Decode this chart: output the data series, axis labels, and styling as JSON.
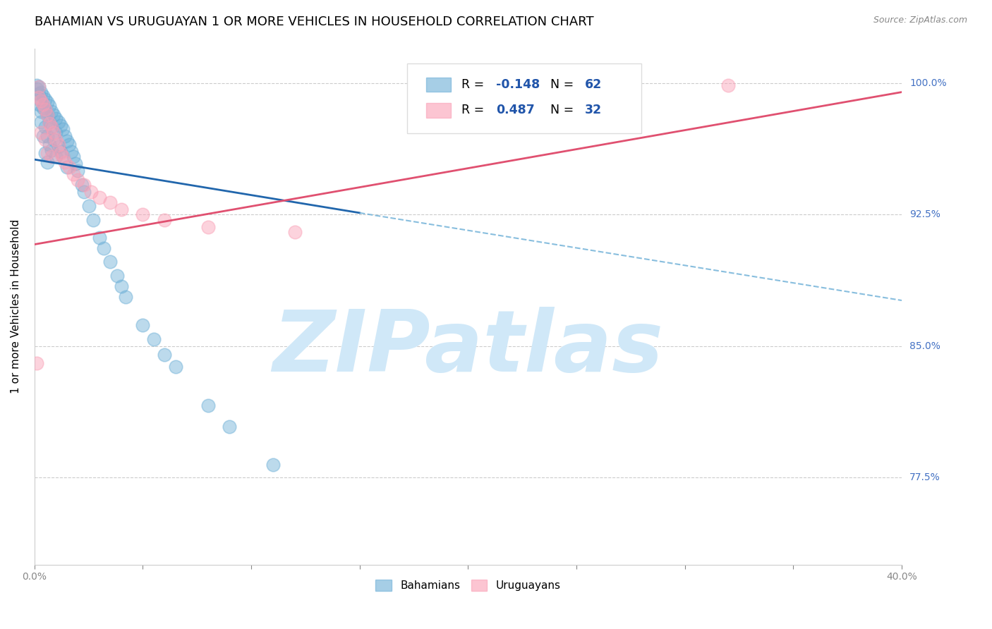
{
  "title": "BAHAMIAN VS URUGUAYAN 1 OR MORE VEHICLES IN HOUSEHOLD CORRELATION CHART",
  "source": "Source: ZipAtlas.com",
  "ylabel": "1 or more Vehicles in Household",
  "ytick_labels": [
    "77.5%",
    "85.0%",
    "92.5%",
    "100.0%"
  ],
  "ytick_values": [
    0.775,
    0.85,
    0.925,
    1.0
  ],
  "xlim": [
    0.0,
    0.4
  ],
  "ylim": [
    0.725,
    1.02
  ],
  "blue_color": "#6baed6",
  "pink_color": "#fa9fb5",
  "trend_blue_solid_color": "#2166ac",
  "trend_blue_dash_color": "#6baed6",
  "trend_pink_color": "#e05070",
  "watermark_text": "ZIPatlas",
  "watermark_color": "#d0e8f8",
  "title_fontsize": 13,
  "axis_label_fontsize": 11,
  "tick_fontsize": 10,
  "blue_scatter_x": [
    0.001,
    0.001,
    0.002,
    0.002,
    0.002,
    0.003,
    0.003,
    0.003,
    0.003,
    0.004,
    0.004,
    0.004,
    0.005,
    0.005,
    0.005,
    0.005,
    0.006,
    0.006,
    0.006,
    0.006,
    0.007,
    0.007,
    0.007,
    0.008,
    0.008,
    0.008,
    0.009,
    0.009,
    0.01,
    0.01,
    0.01,
    0.011,
    0.011,
    0.012,
    0.012,
    0.013,
    0.013,
    0.014,
    0.015,
    0.015,
    0.016,
    0.017,
    0.018,
    0.019,
    0.02,
    0.022,
    0.023,
    0.025,
    0.027,
    0.03,
    0.032,
    0.035,
    0.038,
    0.04,
    0.042,
    0.05,
    0.055,
    0.06,
    0.065,
    0.08,
    0.09,
    0.11
  ],
  "blue_scatter_y": [
    0.999,
    0.997,
    0.998,
    0.994,
    0.988,
    0.995,
    0.99,
    0.984,
    0.978,
    0.993,
    0.986,
    0.97,
    0.991,
    0.985,
    0.975,
    0.96,
    0.989,
    0.982,
    0.97,
    0.955,
    0.987,
    0.978,
    0.965,
    0.984,
    0.975,
    0.962,
    0.982,
    0.968,
    0.98,
    0.972,
    0.958,
    0.978,
    0.964,
    0.976,
    0.961,
    0.974,
    0.958,
    0.97,
    0.967,
    0.952,
    0.965,
    0.961,
    0.958,
    0.954,
    0.95,
    0.942,
    0.938,
    0.93,
    0.922,
    0.912,
    0.906,
    0.898,
    0.89,
    0.884,
    0.878,
    0.862,
    0.854,
    0.845,
    0.838,
    0.816,
    0.804,
    0.782
  ],
  "pink_scatter_x": [
    0.001,
    0.002,
    0.002,
    0.003,
    0.003,
    0.004,
    0.005,
    0.005,
    0.006,
    0.006,
    0.007,
    0.008,
    0.008,
    0.009,
    0.01,
    0.011,
    0.012,
    0.013,
    0.014,
    0.016,
    0.018,
    0.02,
    0.023,
    0.026,
    0.03,
    0.035,
    0.04,
    0.05,
    0.06,
    0.08,
    0.12,
    0.32
  ],
  "pink_scatter_y": [
    0.84,
    0.998,
    0.992,
    0.99,
    0.972,
    0.988,
    0.985,
    0.968,
    0.982,
    0.96,
    0.977,
    0.975,
    0.958,
    0.972,
    0.968,
    0.965,
    0.96,
    0.958,
    0.955,
    0.952,
    0.948,
    0.945,
    0.942,
    0.938,
    0.935,
    0.932,
    0.928,
    0.925,
    0.922,
    0.918,
    0.915,
    0.999
  ],
  "trend_blue_x0": 0.0,
  "trend_blue_y0": 0.9565,
  "trend_blue_x1": 0.15,
  "trend_blue_y1": 0.926,
  "trend_blue_dash_x1": 0.4,
  "trend_blue_dash_y1": 0.876,
  "trend_pink_x0": 0.0,
  "trend_pink_y0": 0.908,
  "trend_pink_x1": 0.4,
  "trend_pink_y1": 0.995
}
